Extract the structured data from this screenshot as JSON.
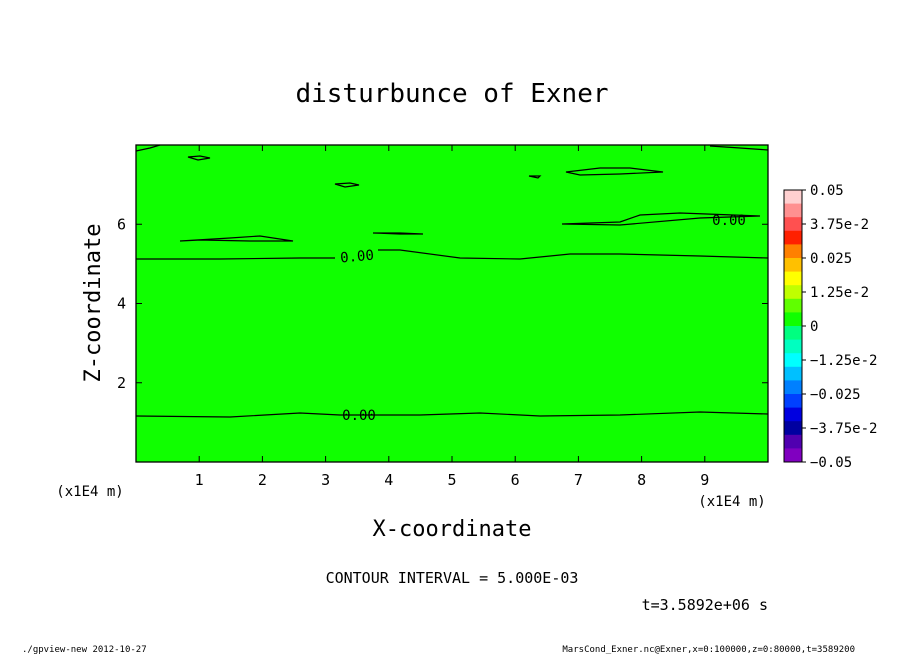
{
  "chart_data": {
    "type": "heatmap",
    "title": "disturbunce of Exner",
    "xlabel": "X-coordinate",
    "ylabel": "Z-coordinate",
    "x_unit": "(x1E4 m)",
    "x_unit_right": "(x1E4 m)",
    "xlim": [
      0,
      10
    ],
    "ylim": [
      0,
      8
    ],
    "xticks": [
      "1",
      "2",
      "3",
      "4",
      "5",
      "6",
      "7",
      "8",
      "9"
    ],
    "yticks": [
      "2",
      "4",
      "6"
    ],
    "field_color": "#10ff00",
    "contour_labels": [
      "0.00",
      "0.00",
      "0.00"
    ],
    "contour_interval": "CONTOUR INTERVAL = 5.000E-03",
    "time_label": "t=3.5892e+06 s",
    "colorbar": {
      "labels": [
        "0.05",
        "3.75e-2",
        "0.025",
        "1.25e-2",
        "0",
        "−1.25e-2",
        "−0.025",
        "−3.75e-2",
        "−0.05"
      ],
      "colors": [
        "#ffd0d0",
        "#ff9090",
        "#ff5050",
        "#ff2000",
        "#ff8000",
        "#ffc000",
        "#ffff00",
        "#c0ff00",
        "#60ff00",
        "#10ff00",
        "#00ff80",
        "#00ffc0",
        "#00ffff",
        "#00c0ff",
        "#0080ff",
        "#0040ff",
        "#0000e0",
        "#0000a0",
        "#5000b0",
        "#8000c0"
      ]
    },
    "footer_left": "./gpview-new   2012-10-27",
    "footer_right": "MarsCond_Exner.nc@Exner,x=0:100000,z=0:80000,t=3589200"
  }
}
